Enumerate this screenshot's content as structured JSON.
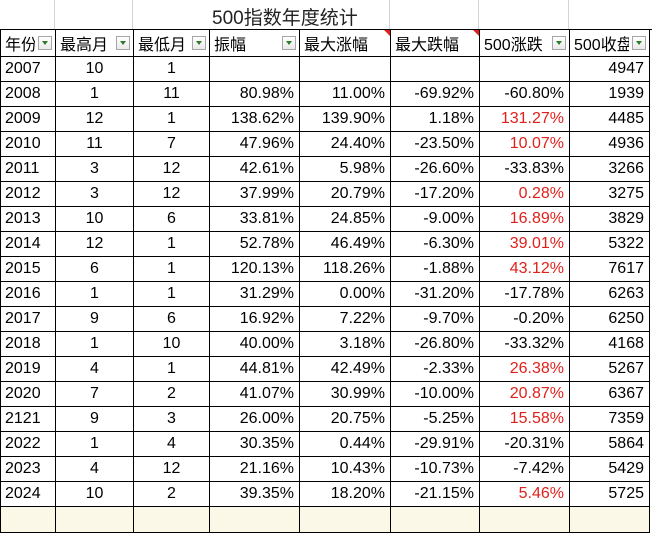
{
  "sheet": {
    "title": "500指数年度统计"
  },
  "columns": [
    {
      "label": "年份",
      "has_filter": true,
      "has_comment": false
    },
    {
      "label": "最高月",
      "has_filter": true,
      "has_comment": false
    },
    {
      "label": "最低月",
      "has_filter": true,
      "has_comment": false
    },
    {
      "label": "振幅",
      "has_filter": true,
      "has_comment": false
    },
    {
      "label": "最大涨幅",
      "has_filter": false,
      "has_comment": true
    },
    {
      "label": "最大跌幅",
      "has_filter": false,
      "has_comment": true
    },
    {
      "label": "500涨跌",
      "has_filter": true,
      "has_comment": false
    },
    {
      "label": "500收盘",
      "has_filter": true,
      "has_comment": false
    }
  ],
  "colors": {
    "negative_red": "#e0201b",
    "grid_line": "#000000",
    "blank_row_fill": "#fbf8e8",
    "filter_arrow": "#2d7a2d"
  },
  "rows": [
    {
      "year": "2007",
      "high": "10",
      "low": "1",
      "amp": "",
      "max_up": "",
      "max_down": "",
      "chg": "",
      "close": "4947",
      "chg_red": false
    },
    {
      "year": "2008",
      "high": "1",
      "low": "11",
      "amp": "80.98%",
      "max_up": "11.00%",
      "max_down": "-69.92%",
      "chg": "-60.80%",
      "close": "1939",
      "chg_red": false
    },
    {
      "year": "2009",
      "high": "12",
      "low": "1",
      "amp": "138.62%",
      "max_up": "139.90%",
      "max_down": "1.18%",
      "chg": "131.27%",
      "close": "4485",
      "chg_red": true
    },
    {
      "year": "2010",
      "high": "11",
      "low": "7",
      "amp": "47.96%",
      "max_up": "24.40%",
      "max_down": "-23.50%",
      "chg": "10.07%",
      "close": "4936",
      "chg_red": true
    },
    {
      "year": "2011",
      "high": "3",
      "low": "12",
      "amp": "42.61%",
      "max_up": "5.98%",
      "max_down": "-26.60%",
      "chg": "-33.83%",
      "close": "3266",
      "chg_red": false
    },
    {
      "year": "2012",
      "high": "3",
      "low": "12",
      "amp": "37.99%",
      "max_up": "20.79%",
      "max_down": "-17.20%",
      "chg": "0.28%",
      "close": "3275",
      "chg_red": true
    },
    {
      "year": "2013",
      "high": "10",
      "low": "6",
      "amp": "33.81%",
      "max_up": "24.85%",
      "max_down": "-9.00%",
      "chg": "16.89%",
      "close": "3829",
      "chg_red": true
    },
    {
      "year": "2014",
      "high": "12",
      "low": "1",
      "amp": "52.78%",
      "max_up": "46.49%",
      "max_down": "-6.30%",
      "chg": "39.01%",
      "close": "5322",
      "chg_red": true
    },
    {
      "year": "2015",
      "high": "6",
      "low": "1",
      "amp": "120.13%",
      "max_up": "118.26%",
      "max_down": "-1.88%",
      "chg": "43.12%",
      "close": "7617",
      "chg_red": true
    },
    {
      "year": "2016",
      "high": "1",
      "low": "1",
      "amp": "31.29%",
      "max_up": "0.00%",
      "max_down": "-31.20%",
      "chg": "-17.78%",
      "close": "6263",
      "chg_red": false
    },
    {
      "year": "2017",
      "high": "9",
      "low": "6",
      "amp": "16.92%",
      "max_up": "7.22%",
      "max_down": "-9.70%",
      "chg": "-0.20%",
      "close": "6250",
      "chg_red": false
    },
    {
      "year": "2018",
      "high": "1",
      "low": "10",
      "amp": "40.00%",
      "max_up": "3.18%",
      "max_down": "-26.80%",
      "chg": "-33.32%",
      "close": "4168",
      "chg_red": false
    },
    {
      "year": "2019",
      "high": "4",
      "low": "1",
      "amp": "44.81%",
      "max_up": "42.49%",
      "max_down": "-2.33%",
      "chg": "26.38%",
      "close": "5267",
      "chg_red": true
    },
    {
      "year": "2020",
      "high": "7",
      "low": "2",
      "amp": "41.07%",
      "max_up": "30.99%",
      "max_down": "-10.00%",
      "chg": "20.87%",
      "close": "6367",
      "chg_red": true
    },
    {
      "year": "2121",
      "high": "9",
      "low": "3",
      "amp": "26.00%",
      "max_up": "20.75%",
      "max_down": "-5.25%",
      "chg": "15.58%",
      "close": "7359",
      "chg_red": true
    },
    {
      "year": "2022",
      "high": "1",
      "low": "4",
      "amp": "30.35%",
      "max_up": "0.44%",
      "max_down": "-29.91%",
      "chg": "-20.31%",
      "close": "5864",
      "chg_red": false
    },
    {
      "year": "2023",
      "high": "4",
      "low": "12",
      "amp": "21.16%",
      "max_up": "10.43%",
      "max_down": "-10.73%",
      "chg": "-7.42%",
      "close": "5429",
      "chg_red": false
    },
    {
      "year": "2024",
      "high": "10",
      "low": "2",
      "amp": "39.35%",
      "max_up": "18.20%",
      "max_down": "-21.15%",
      "chg": "5.46%",
      "close": "5725",
      "chg_red": true
    }
  ]
}
